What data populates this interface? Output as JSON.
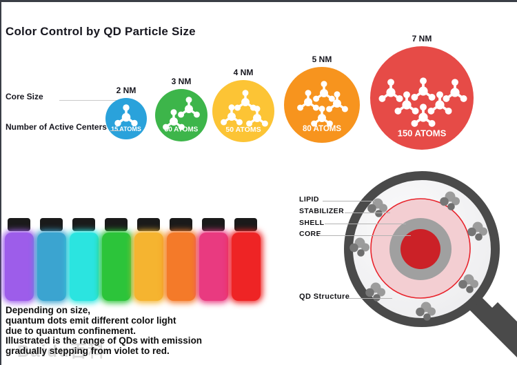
{
  "title": "Color Control by QD Particle Size",
  "size_chart": {
    "core_size_label": "Core Size",
    "active_centers_label": "Number of Active Centers",
    "items": [
      {
        "size": "2 NM",
        "atoms": "15 ATOMS",
        "color": "#2aa2db"
      },
      {
        "size": "3 NM",
        "atoms": "30 ATOMS",
        "color": "#3db54a"
      },
      {
        "size": "4 NM",
        "atoms": "50 ATOMS",
        "color": "#fcc435"
      },
      {
        "size": "5 NM",
        "atoms": "80 ATOMS",
        "color": "#f7941e"
      },
      {
        "size": "7 NM",
        "atoms": "150 ATOMS",
        "color": "#e64b47"
      }
    ]
  },
  "emission_bottles": {
    "cap_color": "#1a1a1a",
    "colors": [
      "#9d5dea",
      "#3ba4d0",
      "#2be4e0",
      "#2cc43a",
      "#f5b430",
      "#f47a29",
      "#e93a80",
      "#ee2425"
    ]
  },
  "qd_structure": {
    "lipid_label": "LIPID",
    "stabilizer_label": "STABILIZER",
    "shell_label": "SHELL",
    "core_label": "CORE",
    "caption": "QD Structure",
    "colors": {
      "frame": "#4a4a4a",
      "lens": "#f1f1f2",
      "stabilizer_fill": "#f3ced2",
      "stabilizer_outline": "#e8232b",
      "shell": "#a0a0a0",
      "core": "#cb2127",
      "lipid": "#8d8d8d"
    }
  },
  "description": {
    "lines": [
      "Depending on size,",
      "quantum dots emit different color light",
      "due to quantum confinement.",
      "Illustrated is the range of QDs with emission",
      "gradually stepping from violet to red."
    ]
  },
  "watermark": "Baidu百科"
}
